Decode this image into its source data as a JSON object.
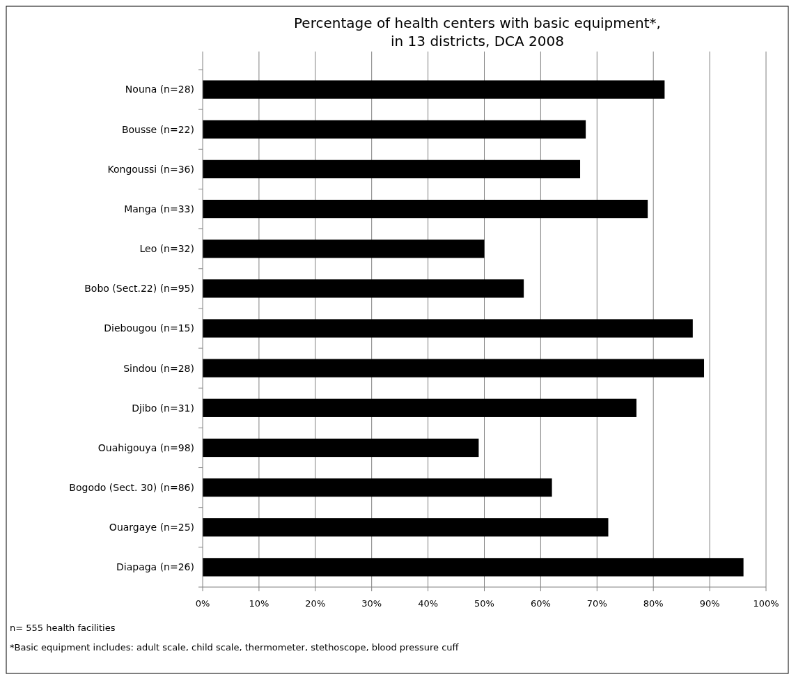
{
  "chart_data": {
    "type": "bar",
    "orientation": "horizontal",
    "title": "Percentage of health centers with basic equipment*,\nin 13 districts, DCA 2008",
    "categories": [
      "Nouna (n=28)",
      "Bousse (n=22)",
      "Kongoussi (n=36)",
      "Manga (n=33)",
      "Leo (n=32)",
      "Bobo (Sect.22) (n=95)",
      "Diebougou (n=15)",
      "Sindou (n=28)",
      "Djibo (n=31)",
      "Ouahigouya (n=98)",
      "Bogodo (Sect. 30) (n=86)",
      "Ouargaye (n=25)",
      "Diapaga (n=26)"
    ],
    "values": [
      82,
      68,
      67,
      79,
      50,
      57,
      87,
      89,
      77,
      49,
      62,
      72,
      96
    ],
    "color": "#000000",
    "xlim": [
      0,
      100
    ],
    "xticks": [
      {
        "value": 0,
        "label": "0%"
      },
      {
        "value": 10,
        "label": "10%"
      },
      {
        "value": 20,
        "label": "20%"
      },
      {
        "value": 30,
        "label": "30%"
      },
      {
        "value": 40,
        "label": "40%"
      },
      {
        "value": 50,
        "label": "50%"
      },
      {
        "value": 60,
        "label": "60%"
      },
      {
        "value": 70,
        "label": "70%"
      },
      {
        "value": 80,
        "label": "80%"
      },
      {
        "value": 90,
        "label": "90%"
      },
      {
        "value": 100,
        "label": "100%"
      }
    ],
    "grid": "x",
    "annotations": [
      "n= 555 health facilities",
      "*Basic equipment includes: adult scale, child scale, thermometer, stethoscope, blood pressure cuff"
    ]
  }
}
